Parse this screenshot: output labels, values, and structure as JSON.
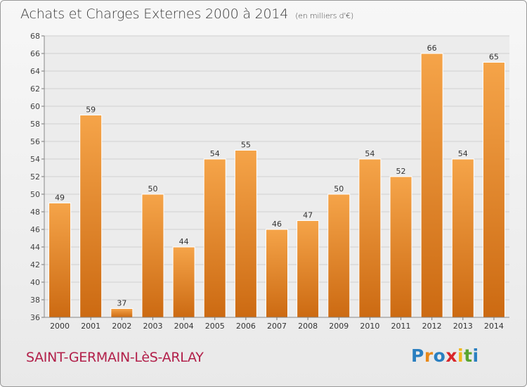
{
  "header": {
    "title": "Achats et Charges Externes 2000 à 2014",
    "subtitle": "(en milliers d'€)"
  },
  "footer": {
    "commune": "SAINT-GERMAIN-LèS-ARLAY",
    "logo_letters": [
      "P",
      "r",
      "o",
      "x",
      "i",
      "t",
      "i"
    ]
  },
  "colors": {
    "bar_top": "#f5a449",
    "bar_bottom": "#cc6a12",
    "grid": "#cfcfcf",
    "plot_bg": "#ececec"
  },
  "chart_data": {
    "type": "bar",
    "title": "Achats et Charges Externes 2000 à 2014",
    "subtitle": "(en milliers d'€)",
    "categories": [
      "2000",
      "2001",
      "2002",
      "2003",
      "2004",
      "2005",
      "2006",
      "2007",
      "2008",
      "2009",
      "2010",
      "2011",
      "2012",
      "2013",
      "2014"
    ],
    "values": [
      49,
      59,
      37,
      50,
      44,
      54,
      55,
      46,
      47,
      50,
      54,
      52,
      66,
      54,
      65
    ],
    "ylim": [
      36,
      68
    ],
    "yticks": [
      36,
      38,
      40,
      42,
      44,
      46,
      48,
      50,
      52,
      54,
      56,
      58,
      60,
      62,
      64,
      66,
      68
    ],
    "grid": true,
    "xlabel": "",
    "ylabel": ""
  }
}
